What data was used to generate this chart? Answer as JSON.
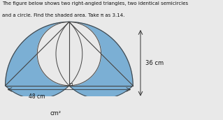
{
  "text_line1": "The figure below shows two right-angled triangles, two identical semicircles",
  "text_line2": "and a circle. Find the shaded area. Take π as 3.14.",
  "dim_48": "48 cm",
  "dim_36": "36 cm",
  "answer_label": "cm²",
  "pi": 3.14,
  "R": 24,
  "bg_color": "#e9e9e9",
  "shaded_color": "#7bafd4",
  "edge_color": "#444444",
  "text_color": "#111111",
  "line_color": "#333333",
  "answer_box_color": "#d0d0d0"
}
